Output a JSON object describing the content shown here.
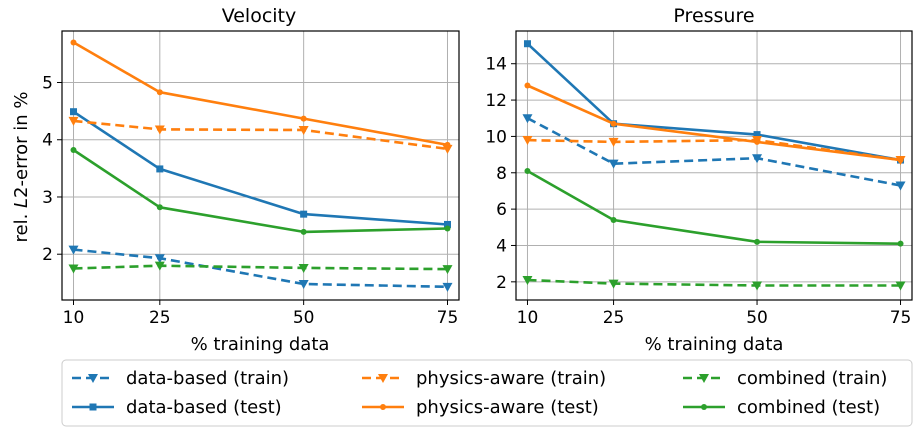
{
  "colors": {
    "data_based": "#1f77b4",
    "physics_aware": "#ff7f0e",
    "combined": "#2ca02c"
  },
  "chart_data": [
    {
      "type": "line",
      "title": "Velocity",
      "xlabel": "% training data",
      "ylabel": "rel. L2-error in %",
      "x": [
        10,
        25,
        50,
        75
      ],
      "xticks": [
        "10",
        "25",
        "50",
        "75"
      ],
      "yticks": [
        "2",
        "3",
        "4",
        "5"
      ],
      "xlim": [
        8,
        77
      ],
      "ylim": [
        1.2,
        5.9
      ],
      "grid": true,
      "series": [
        {
          "name": "data-based (train)",
          "color": "#1f77b4",
          "style": "dashed",
          "marker": "triangle-down",
          "values": [
            2.08,
            1.93,
            1.48,
            1.43
          ]
        },
        {
          "name": "data-based (test)",
          "color": "#1f77b4",
          "style": "solid",
          "marker": "square",
          "values": [
            4.49,
            3.49,
            2.7,
            2.52
          ]
        },
        {
          "name": "physics-aware (train)",
          "color": "#ff7f0e",
          "style": "dashed",
          "marker": "triangle-down",
          "values": [
            4.33,
            4.18,
            4.17,
            3.84
          ]
        },
        {
          "name": "physics-aware (test)",
          "color": "#ff7f0e",
          "style": "solid",
          "marker": "dot",
          "values": [
            5.7,
            4.83,
            4.37,
            3.91
          ]
        },
        {
          "name": "combined (train)",
          "color": "#2ca02c",
          "style": "dashed",
          "marker": "triangle-down",
          "values": [
            1.75,
            1.8,
            1.76,
            1.74
          ]
        },
        {
          "name": "combined (test)",
          "color": "#2ca02c",
          "style": "solid",
          "marker": "dot",
          "values": [
            3.82,
            2.82,
            2.39,
            2.45
          ]
        }
      ]
    },
    {
      "type": "line",
      "title": "Pressure",
      "xlabel": "% training data",
      "ylabel": "",
      "x": [
        10,
        25,
        50,
        75
      ],
      "xticks": [
        "10",
        "25",
        "50",
        "75"
      ],
      "yticks": [
        "2",
        "4",
        "6",
        "8",
        "10",
        "12",
        "14"
      ],
      "xlim": [
        8,
        77
      ],
      "ylim": [
        1.0,
        15.8
      ],
      "grid": true,
      "series": [
        {
          "name": "data-based (train)",
          "color": "#1f77b4",
          "style": "dashed",
          "marker": "triangle-down",
          "values": [
            11.0,
            8.5,
            8.8,
            7.3
          ]
        },
        {
          "name": "data-based (test)",
          "color": "#1f77b4",
          "style": "solid",
          "marker": "square",
          "values": [
            15.1,
            10.7,
            10.1,
            8.7
          ]
        },
        {
          "name": "physics-aware (train)",
          "color": "#ff7f0e",
          "style": "dashed",
          "marker": "triangle-down",
          "values": [
            9.8,
            9.7,
            9.8,
            8.7
          ]
        },
        {
          "name": "physics-aware (test)",
          "color": "#ff7f0e",
          "style": "solid",
          "marker": "dot",
          "values": [
            12.8,
            10.7,
            9.7,
            8.7
          ]
        },
        {
          "name": "combined (train)",
          "color": "#2ca02c",
          "style": "dashed",
          "marker": "triangle-down",
          "values": [
            2.1,
            1.9,
            1.8,
            1.8
          ]
        },
        {
          "name": "combined (test)",
          "color": "#2ca02c",
          "style": "solid",
          "marker": "dot",
          "values": [
            8.1,
            5.4,
            4.2,
            4.1
          ]
        }
      ]
    }
  ],
  "legend": {
    "placement": "bottom",
    "entries": [
      {
        "label": "data-based (train)",
        "color": "#1f77b4",
        "style": "dashed",
        "marker": "triangle-down"
      },
      {
        "label": "physics-aware (train)",
        "color": "#ff7f0e",
        "style": "dashed",
        "marker": "triangle-down"
      },
      {
        "label": "combined (train)",
        "color": "#2ca02c",
        "style": "dashed",
        "marker": "triangle-down"
      },
      {
        "label": "data-based (test)",
        "color": "#1f77b4",
        "style": "solid",
        "marker": "square"
      },
      {
        "label": "physics-aware (test)",
        "color": "#ff7f0e",
        "style": "solid",
        "marker": "dot"
      },
      {
        "label": "combined (test)",
        "color": "#2ca02c",
        "style": "solid",
        "marker": "dot"
      }
    ]
  }
}
